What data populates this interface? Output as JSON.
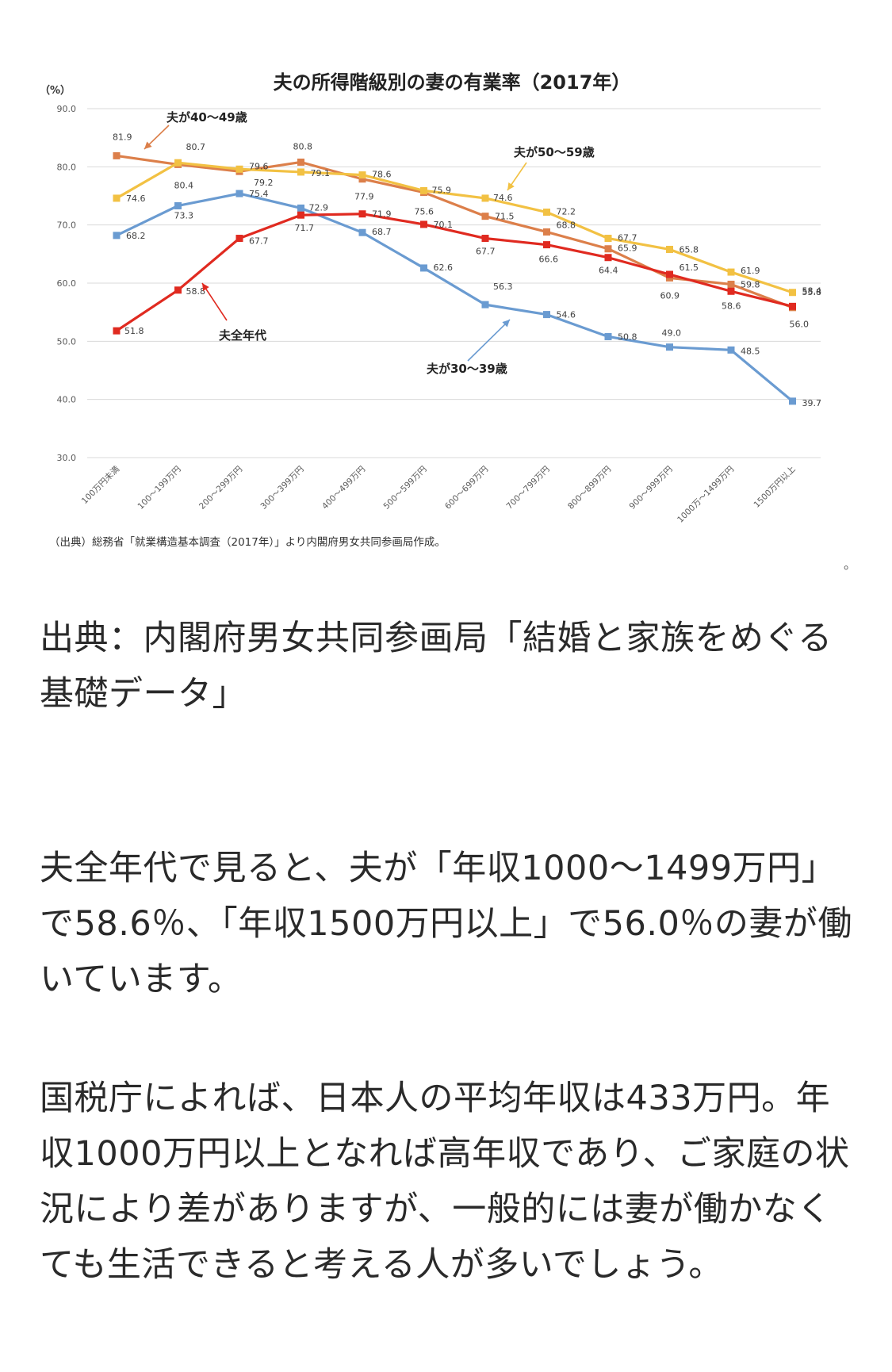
{
  "colors": {
    "series_all": "#e02a20",
    "series_30s": "#6a9bd1",
    "series_40s": "#dc7f4a",
    "series_50s": "#f2c143",
    "grid": "#d9d9d9",
    "axis_text": "#595959"
  },
  "chart_data": {
    "type": "line",
    "title": "夫の所得階級別の妻の有業率（2017年）",
    "ylabel": "（%）",
    "ylim": [
      30,
      90
    ],
    "yticks": [
      "30.0",
      "40.0",
      "50.0",
      "60.0",
      "70.0",
      "80.0",
      "90.0"
    ],
    "grid": true,
    "categories": [
      "100万円未満",
      "100～199万円",
      "200～299万円",
      "300～399万円",
      "400～499万円",
      "500～599万円",
      "600～699万円",
      "700～799万円",
      "800～899万円",
      "900～999万円",
      "1000万～1499万円",
      "1500万円以上"
    ],
    "series": [
      {
        "name": "夫全年代",
        "values": [
          51.8,
          58.8,
          67.7,
          71.7,
          71.9,
          70.1,
          67.7,
          66.6,
          64.4,
          61.5,
          58.6,
          56.0
        ]
      },
      {
        "name": "夫が30～39歳",
        "values": [
          68.2,
          73.3,
          75.4,
          72.9,
          68.7,
          62.6,
          56.3,
          54.6,
          50.8,
          49.0,
          48.5,
          39.7
        ]
      },
      {
        "name": "夫が40～49歳",
        "values": [
          81.9,
          80.4,
          79.2,
          80.8,
          77.9,
          75.6,
          71.5,
          68.8,
          65.9,
          60.9,
          59.8,
          55.8
        ]
      },
      {
        "name": "夫が50～59歳",
        "values": [
          74.6,
          80.7,
          79.6,
          79.1,
          78.6,
          75.9,
          74.6,
          72.2,
          67.7,
          65.8,
          61.9,
          58.4
        ]
      }
    ],
    "source": "（出典）総務省「就業構造基本調査（2017年）」より内閣府男女共同参画局作成。"
  },
  "stray_mark": "。",
  "article": {
    "source_line": "出典：内閣府男女共同参画局「結婚と家族をめぐる基礎データ」",
    "paragraph1": "夫全年代で見ると、夫が「年収1000～1499万円」で58.6％、「年収1500万円以上」で56.0％の妻が働いています。",
    "paragraph2": "国税庁によれば、日本人の平均年収は433万円。年収1000万円以上となれば高年収であり、ご家庭の状況により差がありますが、一般的には妻が働かなくても生活できると考える人が多いでしょう。"
  }
}
